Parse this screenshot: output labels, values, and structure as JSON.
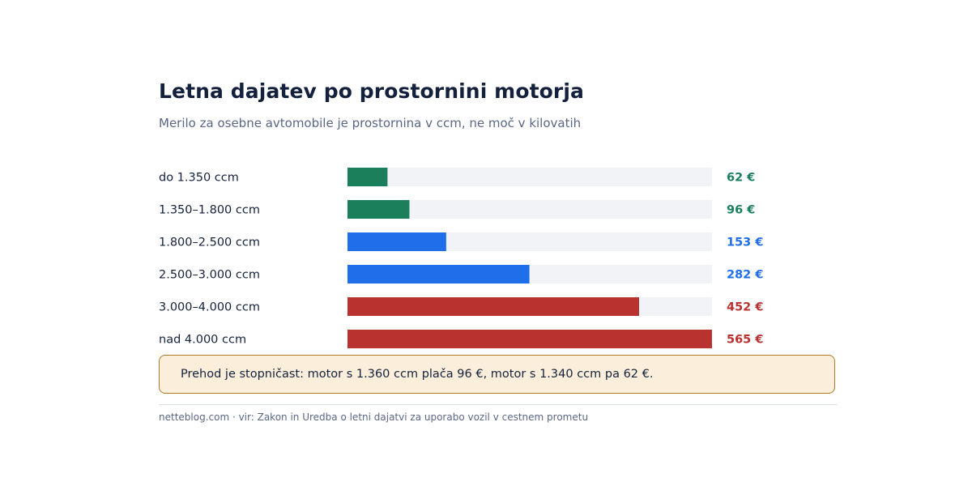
{
  "colors": {
    "green": "#1b7f5c",
    "blue": "#1f6feb",
    "red": "#b83230",
    "track": "#f1f3f7"
  },
  "header": {
    "title": "Letna dajatev po prostornini motorja",
    "subtitle": "Merilo za osebne avtomobile je prostornina v ccm, ne moč v kilovatih"
  },
  "chart_data": {
    "type": "bar",
    "orientation": "horizontal",
    "categories": [
      "do 1.350 ccm",
      "1.350–1.800 ccm",
      "1.800–2.500 ccm",
      "2.500–3.000 ccm",
      "3.000–4.000 ccm",
      "nad 4.000 ccm"
    ],
    "values": [
      62,
      96,
      153,
      282,
      452,
      565
    ],
    "value_labels": [
      "62 €",
      "96 €",
      "153 €",
      "282 €",
      "452 €",
      "565 €"
    ],
    "bar_colors": [
      "green",
      "green",
      "blue",
      "blue",
      "red",
      "red"
    ],
    "xlim": [
      0,
      565
    ],
    "unit": "€",
    "grid": false,
    "legend": "none"
  },
  "note": {
    "text": "Prehod je stopničast: motor s 1.360 ccm plača 96 €, motor s 1.340 ccm pa 62 €."
  },
  "footer": {
    "text": "netteblog.com  ·  vir: Zakon in Uredba o letni dajatvi za uporabo vozil v cestnem prometu"
  }
}
